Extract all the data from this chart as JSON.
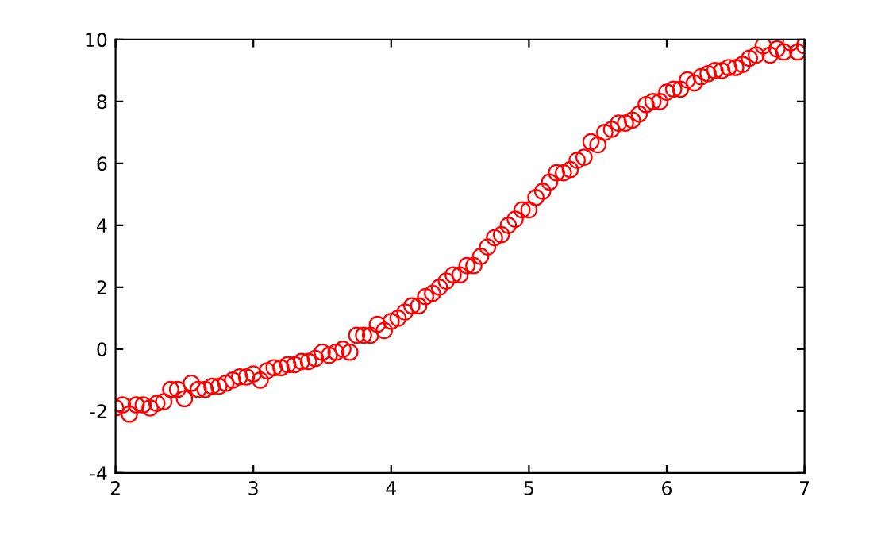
{
  "chart_data": {
    "type": "scatter",
    "marker": "circle",
    "grid": false,
    "x": [
      2,
      2.05,
      2.1,
      2.15,
      2.2,
      2.25,
      2.3,
      2.35,
      2.4,
      2.45,
      2.5,
      2.55,
      2.6,
      2.65,
      2.7,
      2.75,
      2.8,
      2.85,
      2.9,
      2.95,
      3,
      3.05,
      3.1,
      3.15,
      3.2,
      3.25,
      3.3,
      3.35,
      3.4,
      3.45,
      3.5,
      3.55,
      3.6,
      3.65,
      3.7,
      3.75,
      3.8,
      3.85,
      3.9,
      3.95,
      4,
      4.05,
      4.1,
      4.15,
      4.2,
      4.25,
      4.3,
      4.35,
      4.4,
      4.45,
      4.5,
      4.55,
      4.6,
      4.65,
      4.7,
      4.75,
      4.8,
      4.85,
      4.9,
      4.95,
      5,
      5.05,
      5.1,
      5.15,
      5.2,
      5.25,
      5.3,
      5.35,
      5.4,
      5.45,
      5.5,
      5.55,
      5.6,
      5.65,
      5.7,
      5.75,
      5.8,
      5.85,
      5.9,
      5.95,
      6,
      6.05,
      6.1,
      6.15,
      6.2,
      6.25,
      6.3,
      6.35,
      6.4,
      6.45,
      6.5,
      6.55,
      6.6,
      6.65,
      6.7,
      6.75,
      6.8,
      6.85,
      6.9,
      6.95,
      7
    ],
    "series": [
      {
        "color": "#ff0000",
        "values": [
          -1.9,
          -1.8,
          -2.1,
          -1.8,
          -1.8,
          -1.9,
          -1.75,
          -1.7,
          -1.3,
          -1.3,
          -1.6,
          -1.1,
          -1.3,
          -1.3,
          -1.2,
          -1.2,
          -1.1,
          -1.0,
          -0.9,
          -0.9,
          -0.8,
          -1.0,
          -0.7,
          -0.6,
          -0.6,
          -0.5,
          -0.5,
          -0.4,
          -0.4,
          -0.3,
          -0.1,
          -0.2,
          -0.1,
          0.0,
          -0.1,
          0.45,
          0.45,
          0.45,
          0.8,
          0.6,
          0.9,
          1.0,
          1.2,
          1.4,
          1.4,
          1.7,
          1.8,
          2.0,
          2.2,
          2.4,
          2.4,
          2.7,
          2.7,
          3.0,
          3.3,
          3.6,
          3.7,
          4.0,
          4.2,
          4.5,
          4.5,
          4.9,
          5.1,
          5.4,
          5.7,
          5.7,
          5.8,
          6.1,
          6.2,
          6.7,
          6.6,
          7.0,
          7.1,
          7.3,
          7.3,
          7.4,
          7.6,
          7.9,
          8.0,
          8.0,
          8.3,
          8.4,
          8.4,
          8.7,
          8.6,
          8.8,
          8.9,
          9.0,
          9.0,
          9.1,
          9.1,
          9.2,
          9.4,
          9.5,
          9.8,
          9.5,
          9.7,
          9.6,
          9.9,
          9.6,
          9.8
        ]
      }
    ],
    "xlim": [
      2,
      7
    ],
    "xticks": [
      2,
      3,
      4,
      5,
      6,
      7
    ],
    "ylim": [
      -4,
      10
    ],
    "yticks": [
      -4,
      -2,
      0,
      2,
      4,
      6,
      8,
      10
    ]
  }
}
